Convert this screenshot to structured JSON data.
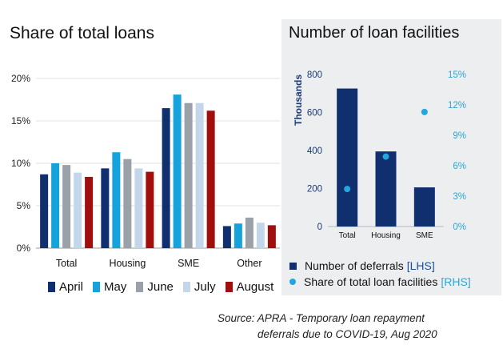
{
  "chart_data": [
    {
      "type": "bar",
      "title": "Share of total loans",
      "categories": [
        "Total",
        "Housing",
        "SME",
        "Other"
      ],
      "yticks": [
        "0%",
        "5%",
        "10%",
        "15%",
        "20%"
      ],
      "ylim": [
        0,
        20
      ],
      "grid": true,
      "legend_position": "bottom",
      "series": [
        {
          "name": "April",
          "color": "#0f2f6e",
          "values": [
            8.7,
            9.4,
            16.5,
            2.6
          ]
        },
        {
          "name": "May",
          "color": "#16a3dc",
          "values": [
            10.0,
            11.3,
            18.1,
            2.9
          ]
        },
        {
          "name": "June",
          "color": "#9aa1a8",
          "values": [
            9.8,
            10.5,
            17.1,
            3.6
          ]
        },
        {
          "name": "July",
          "color": "#c4d7ea",
          "values": [
            8.9,
            9.4,
            17.1,
            3.0
          ]
        },
        {
          "name": "August",
          "color": "#a00e0e",
          "values": [
            8.4,
            9.0,
            16.2,
            2.7
          ]
        }
      ]
    },
    {
      "type": "bar",
      "title": "Number of loan facilities",
      "categories": [
        "Total",
        "Housing",
        "SME"
      ],
      "ylabel": "Thousands",
      "yticks_left": [
        "0",
        "200",
        "400",
        "600",
        "800"
      ],
      "ylim_left": [
        0,
        800
      ],
      "yticks_right": [
        "0%",
        "3%",
        "6%",
        "9%",
        "12%",
        "15%"
      ],
      "ylim_right": [
        0,
        15
      ],
      "legend_position": "bottom",
      "series": [
        {
          "name": "Number of deferrals",
          "axis_tag": "[LHS]",
          "type": "bar",
          "color": "#0f2f6e",
          "values": [
            726,
            395,
            206
          ]
        },
        {
          "name": "Share of total loan facilities",
          "axis_tag": "[RHS]",
          "type": "scatter",
          "color": "#22a6dd",
          "values": [
            3.7,
            6.9,
            11.3
          ]
        }
      ]
    }
  ],
  "source": {
    "line1": "Source: APRA - Temporary loan repayment",
    "line2": "deferrals due to COVID-19, Aug 2020"
  }
}
